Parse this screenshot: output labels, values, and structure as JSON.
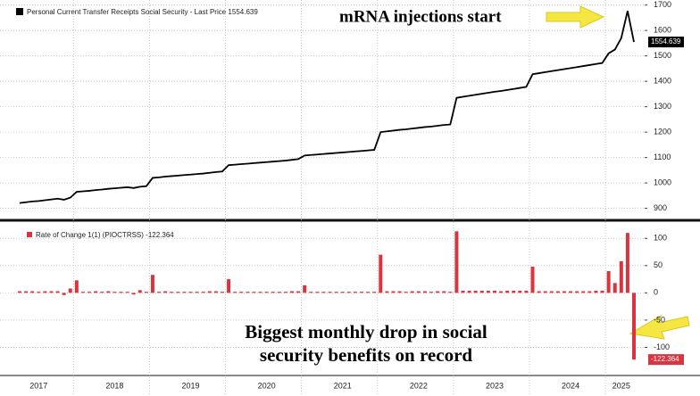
{
  "chart_data": [
    {
      "type": "line",
      "legend": "Personal Current Transfer Receipts Social Security - Last Price 1554.639",
      "annotation": "mRNA injections start",
      "color": "#000000",
      "categories": [
        null,
        null,
        null,
        "2017",
        null,
        null,
        null,
        null,
        null,
        null,
        null,
        null,
        null,
        null,
        null,
        "2018",
        null,
        null,
        null,
        null,
        null,
        null,
        null,
        null,
        null,
        null,
        null,
        "2019",
        null,
        null,
        null,
        null,
        null,
        null,
        null,
        null,
        null,
        null,
        null,
        "2020",
        null,
        null,
        null,
        null,
        null,
        null,
        null,
        null,
        null,
        null,
        null,
        "2021",
        null,
        null,
        null,
        null,
        null,
        null,
        null,
        null,
        null,
        null,
        null,
        "2022",
        null,
        null,
        null,
        null,
        null,
        null,
        null,
        null,
        null,
        null,
        null,
        "2023",
        null,
        null,
        null,
        null,
        null,
        null,
        null,
        null,
        null,
        null,
        null,
        "2024",
        null,
        null,
        null,
        null,
        null,
        null,
        null,
        "2025",
        null,
        null
      ],
      "values": [
        921,
        924,
        927,
        929,
        932,
        935,
        938,
        934,
        942,
        965,
        967,
        969,
        972,
        974,
        977,
        979,
        981,
        983,
        980,
        985,
        987,
        1020,
        1022,
        1025,
        1027,
        1029,
        1031,
        1033,
        1035,
        1037,
        1040,
        1043,
        1045,
        1070,
        1072,
        1074,
        1076,
        1078,
        1080,
        1082,
        1084,
        1086,
        1088,
        1091,
        1094,
        1108,
        1110,
        1112,
        1114,
        1116,
        1118,
        1120,
        1122,
        1124,
        1126,
        1128,
        1130,
        1200,
        1203,
        1206,
        1209,
        1211,
        1214,
        1217,
        1220,
        1222,
        1225,
        1228,
        1230,
        1335,
        1339,
        1343,
        1347,
        1351,
        1355,
        1359,
        1362,
        1366,
        1370,
        1374,
        1378,
        1428,
        1432,
        1436,
        1440,
        1444,
        1448,
        1452,
        1456,
        1460,
        1464,
        1468,
        1472,
        1510,
        1525,
        1570,
        1677,
        1554.639
      ],
      "ylim": [
        860,
        1720
      ],
      "yticks": [
        900,
        1000,
        1100,
        1200,
        1300,
        1400,
        1500,
        1600,
        1700
      ]
    },
    {
      "type": "bar",
      "legend": "Rate of Change 1(1) (PIOCTRSS) -122.364",
      "annotation": [
        "Biggest monthly drop in social",
        "security benefits on record"
      ],
      "color": "#d9343f",
      "values": [
        3,
        3,
        3,
        2,
        3,
        3,
        3,
        -4,
        8,
        23,
        2,
        2,
        3,
        2,
        3,
        2,
        2,
        2,
        -3,
        5,
        2,
        33,
        2,
        3,
        2,
        2,
        2,
        2,
        2,
        2,
        3,
        3,
        2,
        25,
        2,
        2,
        2,
        2,
        2,
        2,
        2,
        2,
        2,
        3,
        3,
        14,
        2,
        2,
        2,
        2,
        2,
        2,
        2,
        2,
        2,
        2,
        2,
        70,
        3,
        3,
        3,
        2,
        3,
        3,
        3,
        2,
        3,
        3,
        2,
        113,
        4,
        4,
        4,
        4,
        4,
        4,
        3,
        4,
        4,
        4,
        4,
        48,
        3,
        3,
        3,
        3,
        3,
        3,
        3,
        3,
        3,
        4,
        4,
        40,
        18,
        58,
        110,
        -122.364
      ],
      "ylim": [
        -150,
        125
      ],
      "yticks": [
        -100,
        -50,
        0,
        50,
        100
      ]
    }
  ]
}
